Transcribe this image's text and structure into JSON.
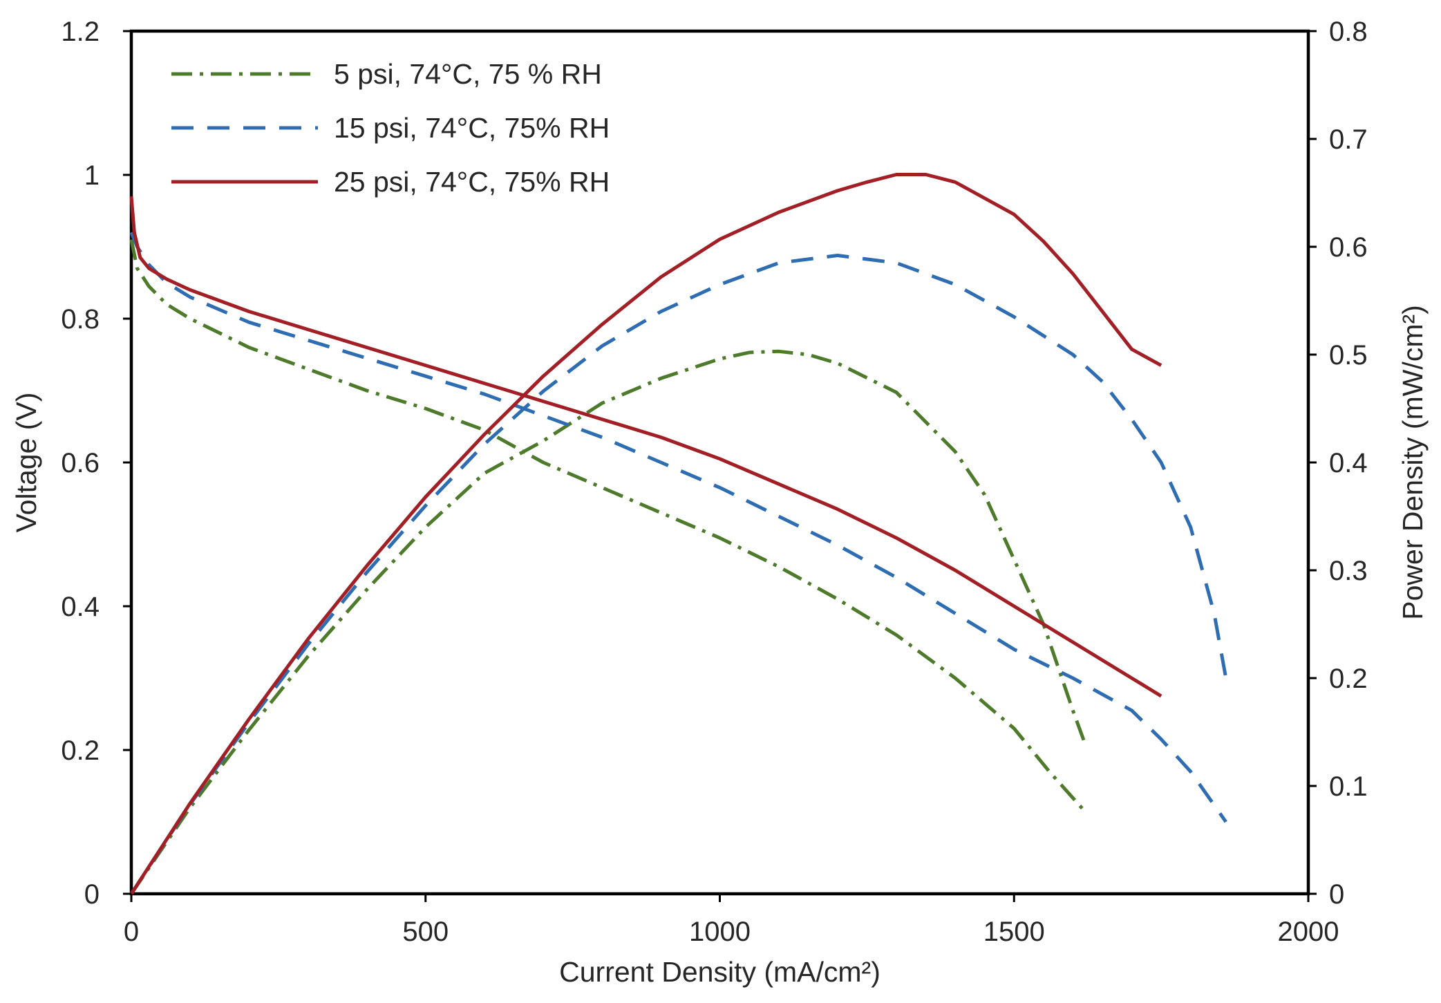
{
  "chart_data": {
    "type": "line",
    "title": "",
    "xlabel": "Current Density (mA/cm²)",
    "ylabel": "Voltage (V)",
    "y2label": "Power Density (mW/cm²)",
    "xlim": [
      0,
      2000
    ],
    "ylim": [
      0,
      1.2
    ],
    "y2lim": [
      0,
      0.8
    ],
    "xticks": [
      0,
      500,
      1000,
      1500,
      2000
    ],
    "xtick_labels": [
      "0",
      "500",
      "1000",
      "1500",
      "2000"
    ],
    "yticks": [
      0,
      0.2,
      0.4,
      0.6,
      0.8,
      1.0,
      1.2
    ],
    "ytick_labels": [
      "0",
      "0.2",
      "0.4",
      "0.6",
      "0.8",
      "1",
      "1.2"
    ],
    "y2ticks": [
      0,
      0.1,
      0.2,
      0.3,
      0.4,
      0.5,
      0.6,
      0.7,
      0.8
    ],
    "y2tick_labels": [
      "0",
      "0.1",
      "0.2",
      "0.3",
      "0.4",
      "0.5",
      "0.6",
      "0.7",
      "0.8"
    ],
    "grid": false,
    "legend_position": "top-left",
    "series": [
      {
        "name": "5 psi, 74°C, 75 % RH",
        "color": "#4e7a2b",
        "style": "dashdot",
        "polarization": {
          "axis": "left",
          "x": [
            0,
            10,
            30,
            60,
            100,
            200,
            300,
            400,
            500,
            600,
            700,
            800,
            900,
            1000,
            1100,
            1200,
            1300,
            1400,
            1500,
            1560,
            1620
          ],
          "y": [
            0.91,
            0.87,
            0.845,
            0.82,
            0.8,
            0.76,
            0.73,
            0.7,
            0.675,
            0.645,
            0.6,
            0.565,
            0.53,
            0.495,
            0.455,
            0.41,
            0.36,
            0.3,
            0.23,
            0.17,
            0.115
          ]
        },
        "power": {
          "axis": "right",
          "x": [
            0,
            100,
            200,
            300,
            400,
            500,
            600,
            700,
            800,
            900,
            1000,
            1050,
            1100,
            1150,
            1200,
            1300,
            1400,
            1450,
            1500,
            1550,
            1600,
            1620
          ],
          "y": [
            0,
            0.08,
            0.152,
            0.22,
            0.282,
            0.34,
            0.39,
            0.42,
            0.455,
            0.478,
            0.496,
            0.502,
            0.503,
            0.5,
            0.492,
            0.465,
            0.41,
            0.37,
            0.31,
            0.25,
            0.17,
            0.14
          ]
        }
      },
      {
        "name": "15 psi, 74°C, 75% RH",
        "color": "#2f6db3",
        "style": "dashed",
        "polarization": {
          "axis": "left",
          "x": [
            0,
            10,
            30,
            60,
            100,
            200,
            300,
            400,
            500,
            600,
            700,
            800,
            900,
            1000,
            1100,
            1200,
            1300,
            1400,
            1500,
            1600,
            1700,
            1750,
            1800,
            1860
          ],
          "y": [
            0.92,
            0.9,
            0.875,
            0.85,
            0.83,
            0.795,
            0.77,
            0.745,
            0.72,
            0.695,
            0.665,
            0.635,
            0.6,
            0.565,
            0.525,
            0.485,
            0.44,
            0.39,
            0.34,
            0.3,
            0.255,
            0.215,
            0.17,
            0.1
          ]
        },
        "power": {
          "axis": "right",
          "x": [
            0,
            100,
            200,
            300,
            400,
            500,
            600,
            700,
            800,
            900,
            1000,
            1100,
            1200,
            1300,
            1400,
            1500,
            1600,
            1650,
            1700,
            1750,
            1800,
            1840,
            1860
          ],
          "y": [
            0,
            0.083,
            0.159,
            0.231,
            0.298,
            0.36,
            0.417,
            0.466,
            0.508,
            0.54,
            0.565,
            0.585,
            0.592,
            0.585,
            0.565,
            0.535,
            0.5,
            0.475,
            0.44,
            0.4,
            0.34,
            0.26,
            0.2
          ]
        }
      },
      {
        "name": "25 psi, 74°C, 75% RH",
        "color": "#a11f25",
        "style": "solid",
        "polarization": {
          "axis": "left",
          "x": [
            0,
            5,
            15,
            30,
            60,
            100,
            200,
            300,
            400,
            500,
            600,
            700,
            800,
            900,
            1000,
            1100,
            1200,
            1300,
            1400,
            1500,
            1600,
            1700,
            1750
          ],
          "y": [
            0.97,
            0.92,
            0.885,
            0.87,
            0.855,
            0.84,
            0.81,
            0.785,
            0.76,
            0.735,
            0.71,
            0.685,
            0.66,
            0.635,
            0.605,
            0.57,
            0.535,
            0.495,
            0.45,
            0.4,
            0.35,
            0.3,
            0.275
          ]
        },
        "power": {
          "axis": "right",
          "x": [
            0,
            100,
            200,
            300,
            400,
            500,
            600,
            700,
            800,
            900,
            1000,
            1100,
            1200,
            1250,
            1300,
            1350,
            1400,
            1500,
            1550,
            1600,
            1650,
            1700,
            1750
          ],
          "y": [
            0,
            0.084,
            0.162,
            0.236,
            0.304,
            0.368,
            0.426,
            0.48,
            0.528,
            0.572,
            0.607,
            0.632,
            0.652,
            0.66,
            0.667,
            0.667,
            0.66,
            0.63,
            0.605,
            0.575,
            0.54,
            0.505,
            0.49
          ]
        }
      }
    ]
  }
}
